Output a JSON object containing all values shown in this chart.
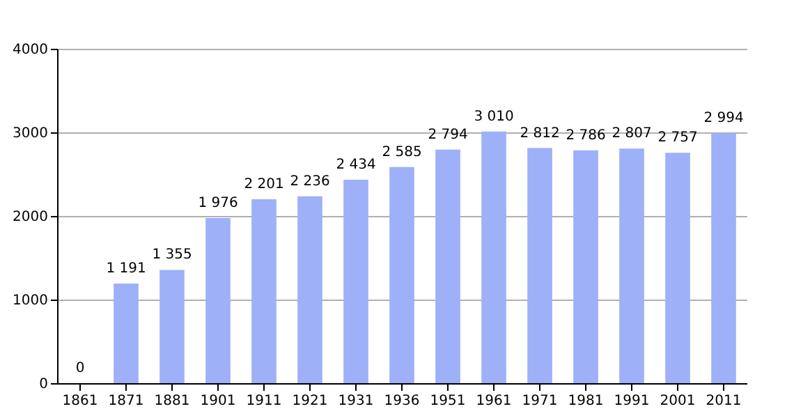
{
  "chart_data": {
    "type": "bar",
    "categories": [
      "1861",
      "1871",
      "1881",
      "1901",
      "1911",
      "1921",
      "1931",
      "1936",
      "1951",
      "1961",
      "1971",
      "1981",
      "1991",
      "2001",
      "2011"
    ],
    "values": [
      0,
      1191,
      1355,
      1976,
      2201,
      2236,
      2434,
      2585,
      2794,
      3010,
      2812,
      2786,
      2807,
      2757,
      2994
    ],
    "value_labels": [
      "0",
      "1 191",
      "1 355",
      "1 976",
      "2 201",
      "2 236",
      "2 434",
      "2 585",
      "2 794",
      "3 010",
      "2 812",
      "2 786",
      "2 807",
      "2 757",
      "2 994"
    ],
    "color": "#9eb0f8",
    "ylim": [
      0,
      4000
    ],
    "yticks": [
      0,
      1000,
      2000,
      3000,
      4000
    ],
    "grid": "y"
  }
}
